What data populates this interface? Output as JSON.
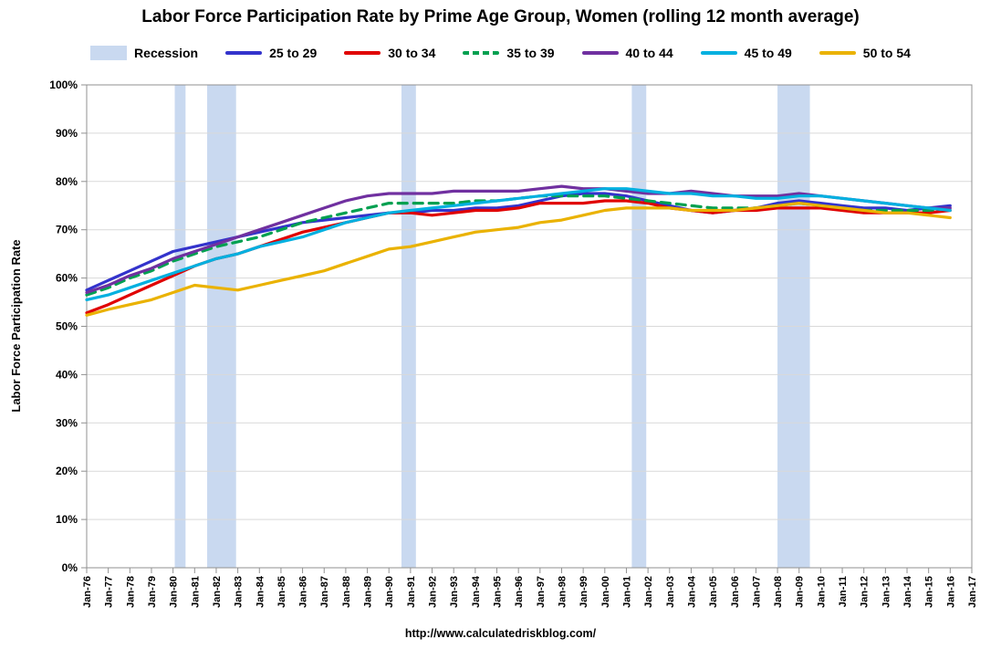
{
  "chart_data": {
    "type": "line",
    "title": "Labor Force Participation Rate by Prime Age Group, Women (rolling 12 month average)",
    "ylabel": "Labor Force Participation Rate",
    "source_url": "http://www.calculatedriskblog.com/",
    "ylim": [
      0,
      100
    ],
    "xlim": [
      1976,
      2017
    ],
    "grid": true,
    "legend_position": "top",
    "recession_label": "Recession",
    "recession_color": "#c9d9f0",
    "gridline_color": "#d9d9d9",
    "axis_color": "#919191",
    "ytick_values": [
      0,
      10,
      20,
      30,
      40,
      50,
      60,
      70,
      80,
      90,
      100
    ],
    "ytick_labels": [
      "0%",
      "10%",
      "20%",
      "30%",
      "40%",
      "50%",
      "60%",
      "70%",
      "80%",
      "90%",
      "100%"
    ],
    "xtick_values": [
      1976,
      1977,
      1978,
      1979,
      1980,
      1981,
      1982,
      1983,
      1984,
      1985,
      1986,
      1987,
      1988,
      1989,
      1990,
      1991,
      1992,
      1993,
      1994,
      1995,
      1996,
      1997,
      1998,
      1999,
      2000,
      2001,
      2002,
      2003,
      2004,
      2005,
      2006,
      2007,
      2008,
      2009,
      2010,
      2011,
      2012,
      2013,
      2014,
      2015,
      2016,
      2017
    ],
    "xtick_labels": [
      "Jan-76",
      "Jan-77",
      "Jan-78",
      "Jan-79",
      "Jan-80",
      "Jan-81",
      "Jan-82",
      "Jan-83",
      "Jan-84",
      "Jan-85",
      "Jan-86",
      "Jan-87",
      "Jan-88",
      "Jan-89",
      "Jan-90",
      "Jan-91",
      "Jan-92",
      "Jan-93",
      "Jan-94",
      "Jan-95",
      "Jan-96",
      "Jan-97",
      "Jan-98",
      "Jan-99",
      "Jan-00",
      "Jan-01",
      "Jan-02",
      "Jan-03",
      "Jan-04",
      "Jan-05",
      "Jan-06",
      "Jan-07",
      "Jan-08",
      "Jan-09",
      "Jan-10",
      "Jan-11",
      "Jan-12",
      "Jan-13",
      "Jan-14",
      "Jan-15",
      "Jan-16",
      "Jan-17"
    ],
    "recessions": [
      {
        "start": 1980.08,
        "end": 1980.58
      },
      {
        "start": 1981.58,
        "end": 1982.92
      },
      {
        "start": 1990.58,
        "end": 1991.25
      },
      {
        "start": 2001.25,
        "end": 2001.92
      },
      {
        "start": 2008.0,
        "end": 2009.5
      }
    ],
    "x": [
      1976,
      1977,
      1978,
      1979,
      1980,
      1981,
      1982,
      1983,
      1984,
      1985,
      1986,
      1987,
      1988,
      1989,
      1990,
      1991,
      1992,
      1993,
      1994,
      1995,
      1996,
      1997,
      1998,
      1999,
      2000,
      2001,
      2002,
      2003,
      2004,
      2005,
      2006,
      2007,
      2008,
      2009,
      2010,
      2011,
      2012,
      2013,
      2014,
      2015,
      2016
    ],
    "series": [
      {
        "name": "25 to 29",
        "color": "#3333cc",
        "dash": false,
        "values": [
          57.5,
          59.5,
          61.5,
          63.5,
          65.5,
          66.5,
          67.5,
          68.5,
          69.5,
          70.5,
          71.5,
          72,
          72.5,
          73,
          73.5,
          73.5,
          74,
          74,
          74.5,
          74.5,
          75,
          76,
          77,
          77.5,
          77.5,
          77,
          76,
          75,
          74,
          73.5,
          74,
          74.5,
          75.5,
          76,
          75.5,
          75,
          74.5,
          74.5,
          74,
          74.5,
          75
        ]
      },
      {
        "name": "30 to 34",
        "color": "#e00000",
        "dash": false,
        "values": [
          52.8,
          54.5,
          56.5,
          58.5,
          60.5,
          62.5,
          64,
          65,
          66.5,
          68,
          69.5,
          70.5,
          71.5,
          72.5,
          73.5,
          73.5,
          73,
          73.5,
          74,
          74,
          74.5,
          75.5,
          75.5,
          75.5,
          76,
          76,
          75.5,
          74.5,
          74,
          73.5,
          74,
          74,
          74.5,
          74.5,
          74.5,
          74,
          73.5,
          73.5,
          73.5,
          73.5,
          74
        ]
      },
      {
        "name": "35 to 39",
        "color": "#00a050",
        "dash": true,
        "values": [
          56.5,
          58,
          60,
          61.5,
          63.5,
          65,
          66.5,
          67.5,
          68.5,
          70,
          71.5,
          72.5,
          73.5,
          74.5,
          75.5,
          75.5,
          75.5,
          75.5,
          76,
          76,
          76.5,
          77,
          77,
          77,
          77,
          76.5,
          76,
          75.5,
          75,
          74.5,
          74.5,
          74.5,
          75,
          75.5,
          75,
          74.5,
          74,
          74,
          74,
          74,
          74.5
        ]
      },
      {
        "name": "40 to 44",
        "color": "#7030a0",
        "dash": false,
        "values": [
          57,
          58.5,
          60.5,
          62,
          64,
          65.5,
          67,
          68.5,
          70,
          71.5,
          73,
          74.5,
          76,
          77,
          77.5,
          77.5,
          77.5,
          78,
          78,
          78,
          78,
          78.5,
          79,
          78.5,
          78.5,
          78,
          77.5,
          77.5,
          78,
          77.5,
          77,
          77,
          77,
          77.5,
          77,
          76.5,
          76,
          75.5,
          75,
          74.5,
          74.5
        ]
      },
      {
        "name": "45 to 49",
        "color": "#00b0e0",
        "dash": false,
        "values": [
          55.5,
          56.5,
          58,
          59.5,
          61,
          62.5,
          64,
          65,
          66.5,
          67.5,
          68.5,
          70,
          71.5,
          72.5,
          73.5,
          74,
          74.5,
          75,
          75.5,
          76,
          76.5,
          77,
          77.5,
          78,
          78.5,
          78.5,
          78,
          77.5,
          77.5,
          77,
          77,
          76.5,
          76.5,
          77,
          77,
          76.5,
          76,
          75.5,
          75,
          74.5,
          74
        ]
      },
      {
        "name": "50 to 54",
        "color": "#eab200",
        "dash": false,
        "values": [
          52.3,
          53.5,
          54.5,
          55.5,
          57,
          58.5,
          58,
          57.5,
          58.5,
          59.5,
          60.5,
          61.5,
          63,
          64.5,
          66,
          66.5,
          67.5,
          68.5,
          69.5,
          70,
          70.5,
          71.5,
          72,
          73,
          74,
          74.5,
          74.5,
          74.5,
          74,
          74,
          74,
          74.5,
          75,
          75.5,
          75,
          74.5,
          74,
          73.5,
          73.5,
          73,
          72.5
        ]
      }
    ]
  }
}
